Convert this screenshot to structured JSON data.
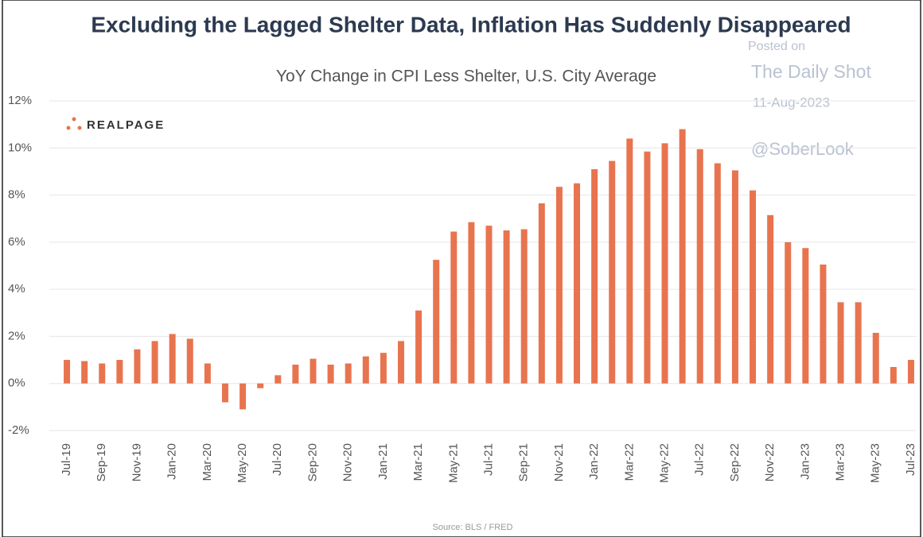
{
  "chart_data": {
    "type": "bar",
    "title": "Excluding the Lagged Shelter Data, Inflation Has Suddenly Disappeared",
    "subtitle": "YoY Change in CPI Less Shelter, U.S. City Average",
    "logo": "REALPAGE",
    "watermark": [
      "Posted on",
      "The Daily Shot",
      "11-Aug-2023",
      "@SoberLook"
    ],
    "source": "Source: BLS / FRED",
    "categories": [
      "Jul-19",
      null,
      "Sep-19",
      null,
      "Nov-19",
      null,
      "Jan-20",
      null,
      "Mar-20",
      null,
      "May-20",
      null,
      "Jul-20",
      null,
      "Sep-20",
      null,
      "Nov-20",
      null,
      "Jan-21",
      null,
      "Mar-21",
      null,
      "May-21",
      null,
      "Jul-21",
      null,
      "Sep-21",
      null,
      "Nov-21",
      null,
      "Jan-22",
      null,
      "Mar-22",
      null,
      "May-22",
      null,
      "Jul-22",
      null,
      "Sep-22",
      null,
      "Nov-22",
      null,
      "Jan-23",
      null,
      "Mar-23",
      null,
      "May-23",
      null,
      "Jul-23"
    ],
    "values": [
      1.0,
      0.95,
      0.85,
      1.0,
      1.45,
      1.8,
      2.1,
      1.9,
      0.85,
      -0.8,
      -1.1,
      -0.2,
      0.35,
      0.8,
      1.05,
      0.8,
      0.85,
      1.15,
      1.3,
      1.8,
      3.1,
      5.25,
      6.45,
      6.85,
      6.7,
      6.5,
      6.55,
      7.65,
      8.35,
      8.5,
      9.1,
      9.45,
      10.4,
      9.85,
      10.2,
      10.8,
      9.95,
      9.35,
      9.05,
      8.2,
      7.15,
      6.0,
      5.75,
      5.05,
      3.45,
      3.45,
      2.15,
      0.7,
      1.0
    ],
    "color": "#e8744f",
    "ylim": [
      -2,
      12
    ],
    "yticks": [
      {
        "value": -2,
        "label": "-2%"
      },
      {
        "value": 0,
        "label": "0%"
      },
      {
        "value": 2,
        "label": "2%"
      },
      {
        "value": 4,
        "label": "4%"
      },
      {
        "value": 6,
        "label": "6%"
      },
      {
        "value": 8,
        "label": "8%"
      },
      {
        "value": 10,
        "label": "10%"
      },
      {
        "value": 12,
        "label": "12%"
      }
    ],
    "grid": true
  }
}
